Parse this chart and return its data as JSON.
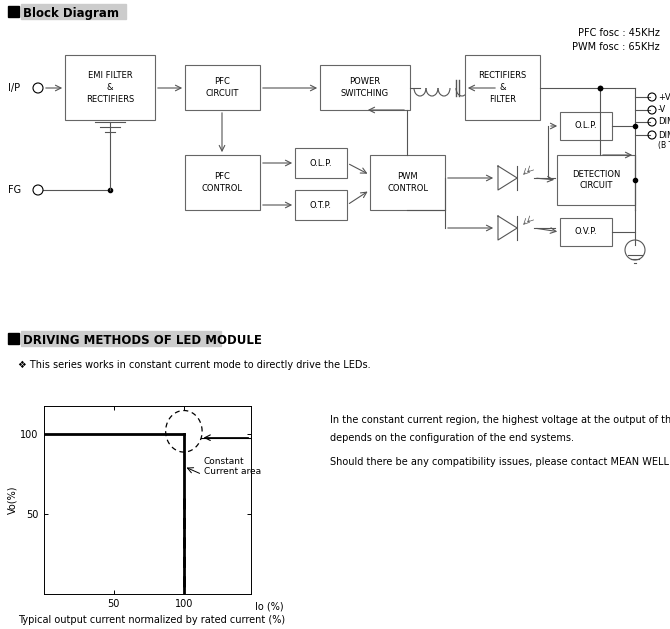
{
  "bg_color": "#ffffff",
  "section1_title": "Block Diagram",
  "section2_title": "DRIVING METHODS OF LED MODULE",
  "pfc_text": "PFC fosc : 45KHz\nPWM fosc : 65KHz",
  "note_text": "❖ This series works in constant current mode to directly drive the LEDs.",
  "graph_note_line1": "In the constant current region, the highest voltage at the output of the driver",
  "graph_note_line2": "depends on the configuration of the end systems.",
  "graph_note_line3": "Should there be any compatibility issues, please contact MEAN WELL.",
  "caption": "Typical output current normalized by rated current (%)",
  "ylabel": "Vo(%)",
  "xlabel": "Io (%)",
  "annotation": "Constant\nCurrent area"
}
